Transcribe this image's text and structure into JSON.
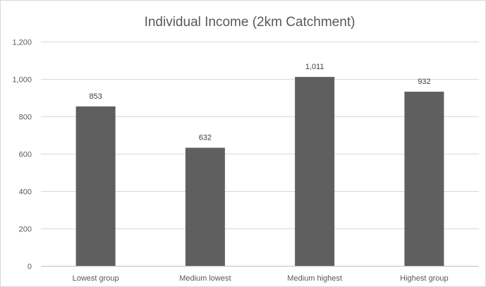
{
  "chart_data": {
    "type": "bar",
    "title": "Individual Income (2km Catchment)",
    "xlabel": "",
    "ylabel": "",
    "categories": [
      "Lowest group",
      "Medium lowest",
      "Medium highest",
      "Highest group"
    ],
    "values": [
      853,
      632,
      1011,
      932
    ],
    "value_labels": [
      "853",
      "632",
      "1,011",
      "932"
    ],
    "ylim": [
      0,
      1200
    ],
    "y_ticks": [
      0,
      200,
      400,
      600,
      800,
      1000,
      1200
    ],
    "y_tick_labels": [
      "0",
      "200",
      "400",
      "600",
      "800",
      "1,000",
      "1,200"
    ],
    "grid": true,
    "legend": "none",
    "bar_color": "#5f5f5f"
  }
}
